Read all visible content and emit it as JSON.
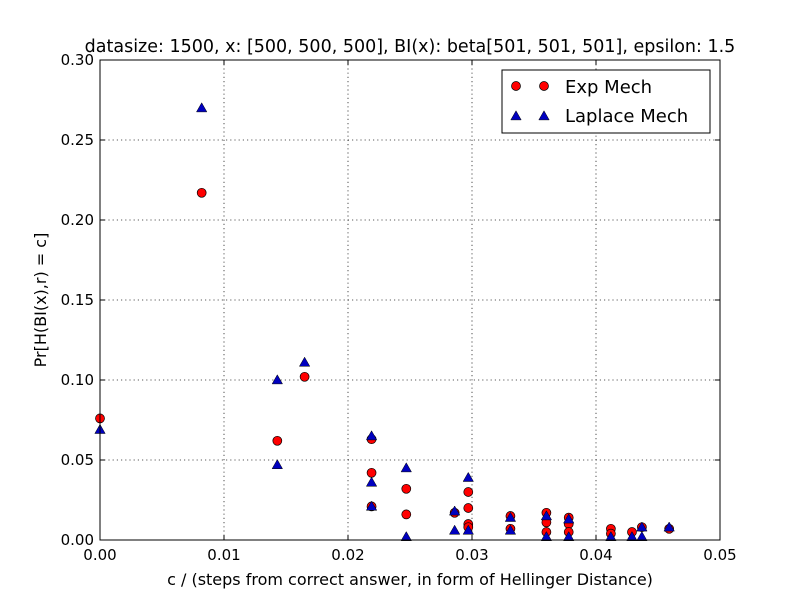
{
  "chart_data": {
    "type": "scatter",
    "title": "datasize: 1500, x: [500, 500, 500], BI(x): beta[501, 501, 501], epsilon: 1.5",
    "xlabel": "c / (steps from correct answer, in form of Hellinger Distance)",
    "ylabel": "Pr[H(BI(x),r) = c]",
    "xlim": [
      0.0,
      0.05
    ],
    "ylim": [
      0.0,
      0.3
    ],
    "x_ticks": [
      0.0,
      0.01,
      0.02,
      0.03,
      0.04,
      0.05
    ],
    "x_tick_labels": [
      "0.00",
      "0.01",
      "0.02",
      "0.03",
      "0.04",
      "0.05"
    ],
    "y_ticks": [
      0.0,
      0.05,
      0.1,
      0.15,
      0.2,
      0.25,
      0.3
    ],
    "y_tick_labels": [
      "0.00",
      "0.05",
      "0.10",
      "0.15",
      "0.20",
      "0.25",
      "0.30"
    ],
    "grid": true,
    "legend_position": "top-right",
    "series": [
      {
        "name": "Exp Mech",
        "marker": "circle",
        "color": "#ff0000",
        "points": [
          [
            0.0,
            0.076
          ],
          [
            0.0082,
            0.217
          ],
          [
            0.0143,
            0.062
          ],
          [
            0.0165,
            0.102
          ],
          [
            0.0219,
            0.063
          ],
          [
            0.0219,
            0.042
          ],
          [
            0.0219,
            0.021
          ],
          [
            0.0247,
            0.032
          ],
          [
            0.0247,
            0.016
          ],
          [
            0.0286,
            0.017
          ],
          [
            0.0297,
            0.03
          ],
          [
            0.0297,
            0.02
          ],
          [
            0.0297,
            0.01
          ],
          [
            0.0297,
            0.008
          ],
          [
            0.0331,
            0.015
          ],
          [
            0.0331,
            0.007
          ],
          [
            0.036,
            0.017
          ],
          [
            0.036,
            0.011
          ],
          [
            0.036,
            0.005
          ],
          [
            0.0378,
            0.014
          ],
          [
            0.0378,
            0.01
          ],
          [
            0.0378,
            0.005
          ],
          [
            0.0412,
            0.007
          ],
          [
            0.0412,
            0.004
          ],
          [
            0.0429,
            0.005
          ],
          [
            0.0437,
            0.008
          ],
          [
            0.0459,
            0.007
          ]
        ]
      },
      {
        "name": "Laplace Mech",
        "marker": "triangle",
        "color": "#0000bf",
        "points": [
          [
            0.0,
            0.069
          ],
          [
            0.0082,
            0.27
          ],
          [
            0.0143,
            0.1
          ],
          [
            0.0143,
            0.047
          ],
          [
            0.0165,
            0.111
          ],
          [
            0.0219,
            0.065
          ],
          [
            0.0219,
            0.036
          ],
          [
            0.0219,
            0.021
          ],
          [
            0.0247,
            0.045
          ],
          [
            0.0247,
            0.002
          ],
          [
            0.0286,
            0.018
          ],
          [
            0.0286,
            0.006
          ],
          [
            0.0297,
            0.039
          ],
          [
            0.0297,
            0.006
          ],
          [
            0.0331,
            0.014
          ],
          [
            0.0331,
            0.006
          ],
          [
            0.036,
            0.015
          ],
          [
            0.036,
            0.002
          ],
          [
            0.0378,
            0.013
          ],
          [
            0.0378,
            0.002
          ],
          [
            0.0412,
            0.002
          ],
          [
            0.0429,
            0.002
          ],
          [
            0.0437,
            0.008
          ],
          [
            0.0437,
            0.002
          ],
          [
            0.0459,
            0.008
          ]
        ]
      }
    ]
  }
}
